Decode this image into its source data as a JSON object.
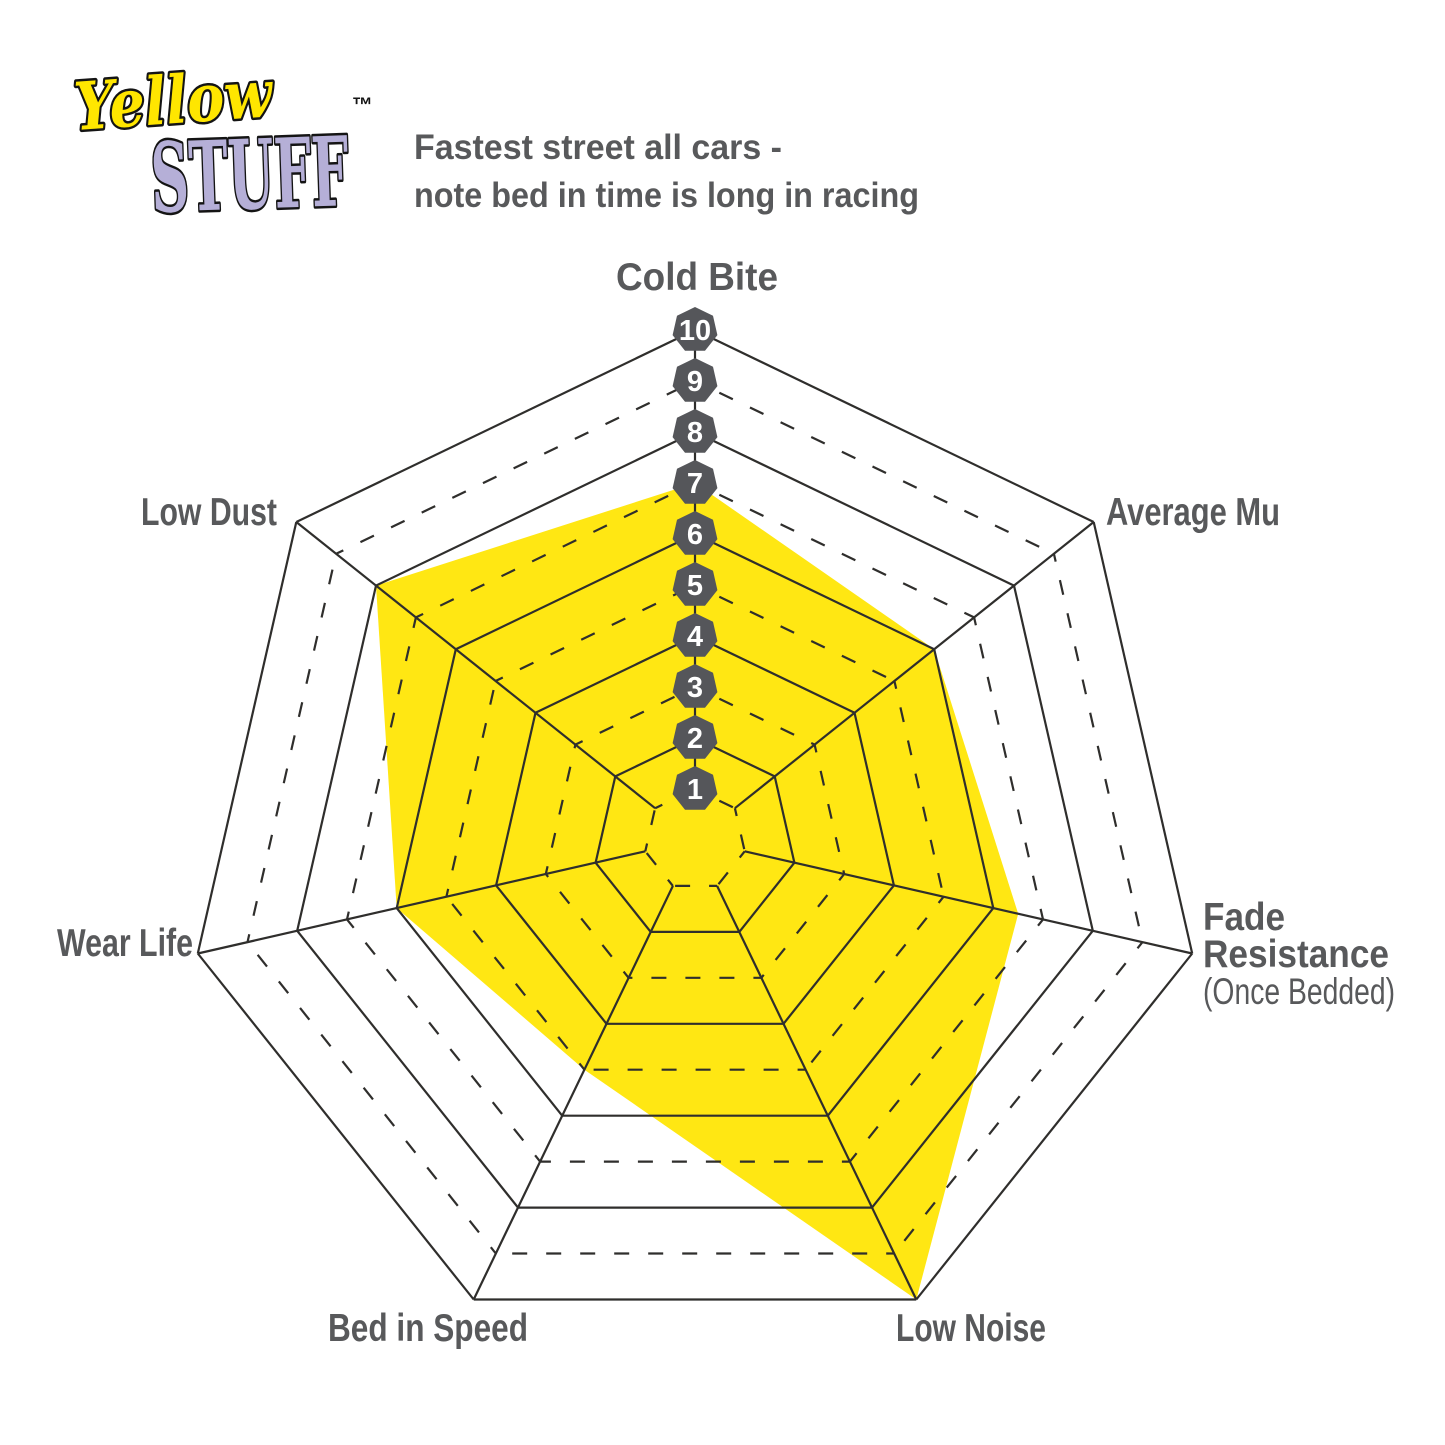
{
  "logo": {
    "word1": "Yellow",
    "word2": "STUFF",
    "trademark": "™"
  },
  "header": {
    "line1": "Fastest street all cars -",
    "line2": "note bed in time is long in racing"
  },
  "chart_data": {
    "type": "radar",
    "title": "Yellowstuff pad performance ratings",
    "layout": "7-axis heptagon web, Cold Bite at top, axes clockwise, 10 rings, even rings solid, odd rings dashed, grid drawn over fill",
    "scale": {
      "min": 0,
      "max": 10,
      "ring_step": 1
    },
    "tick_labels": [
      "10",
      "9",
      "8",
      "7",
      "6",
      "5",
      "4",
      "3",
      "2",
      "1"
    ],
    "axes": [
      {
        "label": "Cold Bite",
        "value": 7
      },
      {
        "label": "Average Mu",
        "value": 6
      },
      {
        "label": "Fade Resistance",
        "sublabel": "(Once Bedded)",
        "value": 6.5
      },
      {
        "label": "Low Noise",
        "value": 10
      },
      {
        "label": "Bed in Speed",
        "value": 5
      },
      {
        "label": "Wear Life",
        "value": 6
      },
      {
        "label": "Low Dust",
        "value": 8
      }
    ],
    "colors": {
      "fill": "#ffe713",
      "grid": "#2f2e2c",
      "badge": "#55565a",
      "badge_text": "#ffffff",
      "label": "#58595b",
      "logo_yellow": "#ffe600",
      "logo_lavender": "#b5afd7"
    }
  }
}
